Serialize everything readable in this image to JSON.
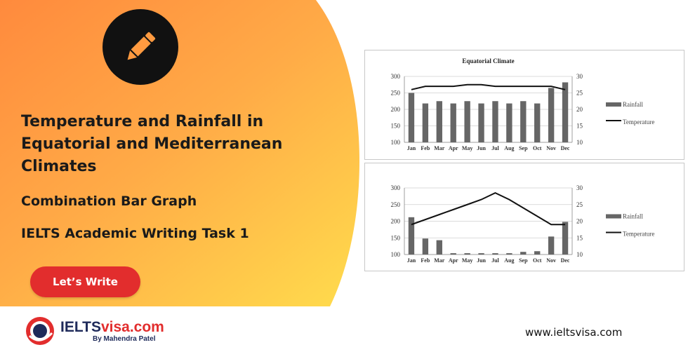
{
  "colors": {
    "accent_orange": "#ff8f3f",
    "accent_yellow": "#ffd24a",
    "cta_red": "#e22d2d",
    "bar_gray": "#666666",
    "line_black": "#111111"
  },
  "hero": {
    "icon": "pencil-icon",
    "title": "Temperature and Rainfall in Equatorial and Mediterranean Climates",
    "subtitle": "Combination Bar Graph",
    "task": "IELTS Academic Writing Task 1",
    "cta_label": "Let’s Write"
  },
  "footer": {
    "logo_main": "IELTS",
    "logo_accent": "visa.com",
    "logo_byline": "By Mahendra Patel",
    "website": "www.ieltsvisa.com"
  },
  "chart_data": [
    {
      "type": "bar",
      "title": "Equatorial Climate",
      "categories": [
        "Jan",
        "Feb",
        "Mar",
        "Apr",
        "May",
        "Jun",
        "Jul",
        "Aug",
        "Sep",
        "Oct",
        "Nov",
        "Dec"
      ],
      "ylim": [
        100,
        300
      ],
      "yticks": [
        100,
        150,
        200,
        250,
        300
      ],
      "y2lim": [
        10,
        30
      ],
      "y2ticks": [
        10,
        15,
        20,
        25,
        30
      ],
      "series": [
        {
          "name": "Rainfall",
          "kind": "bar",
          "axis": "left",
          "values": [
            250,
            218,
            225,
            218,
            225,
            218,
            225,
            218,
            225,
            218,
            265,
            282
          ]
        },
        {
          "name": "Temperature",
          "kind": "line",
          "axis": "right",
          "values": [
            26,
            27,
            27,
            27,
            27.5,
            27.5,
            27,
            27,
            27,
            27,
            27,
            26
          ]
        }
      ],
      "legend_position": "right"
    },
    {
      "type": "bar",
      "title": "",
      "categories": [
        "Jan",
        "Feb",
        "Mar",
        "Apr",
        "May",
        "Jun",
        "Jul",
        "Aug",
        "Sep",
        "Oct",
        "Nov",
        "Dec"
      ],
      "ylim": [
        100,
        300
      ],
      "yticks": [
        100,
        150,
        200,
        250,
        300
      ],
      "y2lim": [
        10,
        30
      ],
      "y2ticks": [
        10,
        15,
        20,
        25,
        30
      ],
      "series": [
        {
          "name": "Rainfall",
          "kind": "bar",
          "axis": "left",
          "values": [
            212,
            148,
            143,
            104,
            104,
            104,
            104,
            104,
            108,
            110,
            154,
            198
          ]
        },
        {
          "name": "Temperature",
          "kind": "line",
          "axis": "right",
          "values": [
            19,
            20.5,
            22,
            23.5,
            25,
            26.5,
            28.5,
            26.5,
            24,
            21.5,
            19,
            19
          ]
        }
      ],
      "legend_position": "right"
    }
  ]
}
